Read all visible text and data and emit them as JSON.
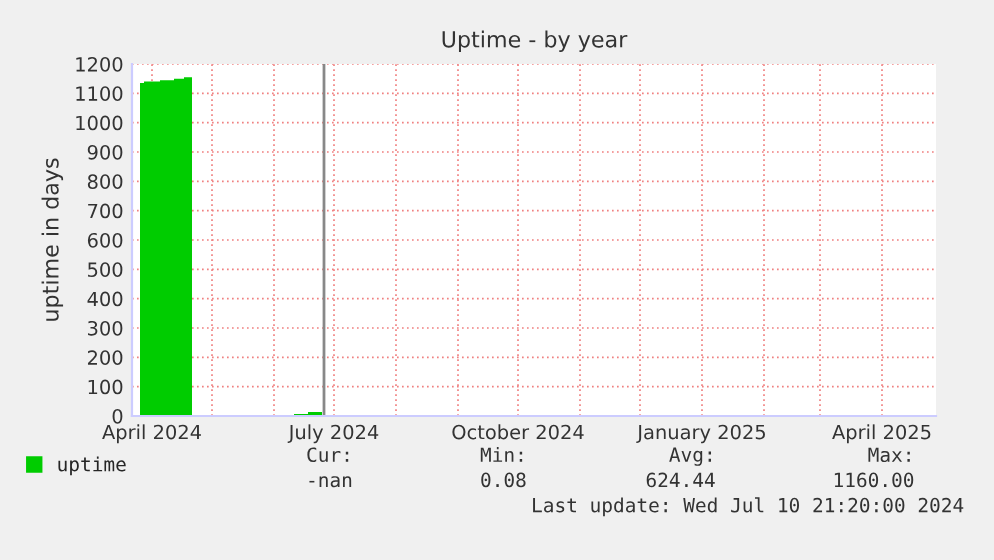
{
  "chart_data": {
    "type": "area",
    "title": "Uptime - by year",
    "ylabel": "uptime in days",
    "x": [
      "2024-03-26",
      "2024-03-28",
      "2024-04-05",
      "2024-04-12",
      "2024-04-17",
      "2024-04-21",
      "2024-05-10",
      "2024-06-04",
      "2024-06-08",
      "2024-06-11",
      "2024-06-18",
      "2024-06-25"
    ],
    "series": [
      {
        "name": "uptime",
        "color": "#00cc00",
        "values": [
          1135,
          1140,
          1145,
          1150,
          1155,
          1160,
          null,
          0,
          2,
          7,
          14,
          18
        ]
      }
    ],
    "xlim": [
      "2024-03-22",
      "2025-04-28"
    ],
    "xticks": [
      {
        "value": "2024-04-01",
        "label": "April 2024"
      },
      {
        "value": "2024-05-01",
        "label": null
      },
      {
        "value": "2024-06-01",
        "label": null
      },
      {
        "value": "2024-07-01",
        "label": "July 2024"
      },
      {
        "value": "2024-08-01",
        "label": null
      },
      {
        "value": "2024-09-01",
        "label": null
      },
      {
        "value": "2024-10-01",
        "label": "October 2024"
      },
      {
        "value": "2024-11-01",
        "label": null
      },
      {
        "value": "2024-12-01",
        "label": null
      },
      {
        "value": "2025-01-01",
        "label": "January 2025"
      },
      {
        "value": "2025-02-01",
        "label": null
      },
      {
        "value": "2025-03-01",
        "label": null
      },
      {
        "value": "2025-04-01",
        "label": "April 2025"
      }
    ],
    "ylim": [
      0,
      1200
    ],
    "yticks": [
      0,
      100,
      200,
      300,
      400,
      500,
      600,
      700,
      800,
      900,
      1000,
      1100,
      1200
    ],
    "ref_lines": [
      {
        "axis": "x",
        "value": "2024-06-26",
        "color": "#888888"
      }
    ],
    "grid": true,
    "legend": "bottom left",
    "annotations": [
      "Cur:",
      "-nan",
      "Min:",
      "0.08",
      "Avg:",
      "624.44",
      "Max:",
      "1160.00",
      "Last update: Wed Jul 10 21:20:00 2024"
    ]
  }
}
